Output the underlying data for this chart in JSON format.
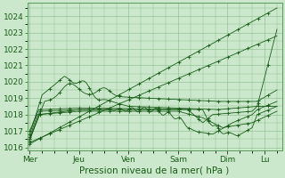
{
  "xlabel": "Pression niveau de la mer( hPa )",
  "ylim": [
    1015.8,
    1024.8
  ],
  "yticks": [
    1016,
    1017,
    1018,
    1019,
    1020,
    1021,
    1022,
    1023,
    1024
  ],
  "background_color": "#cce8cc",
  "grid_color": "#88bb88",
  "line_color": "#1a5c1a",
  "x_day_labels": [
    "Mer",
    "Jeu",
    "Ven",
    "Sam",
    "Dim",
    "Lu"
  ],
  "x_day_positions": [
    0,
    1,
    2,
    3,
    4,
    4.75
  ],
  "xlabel_fontsize": 7.5,
  "tick_fontsize": 6.5
}
